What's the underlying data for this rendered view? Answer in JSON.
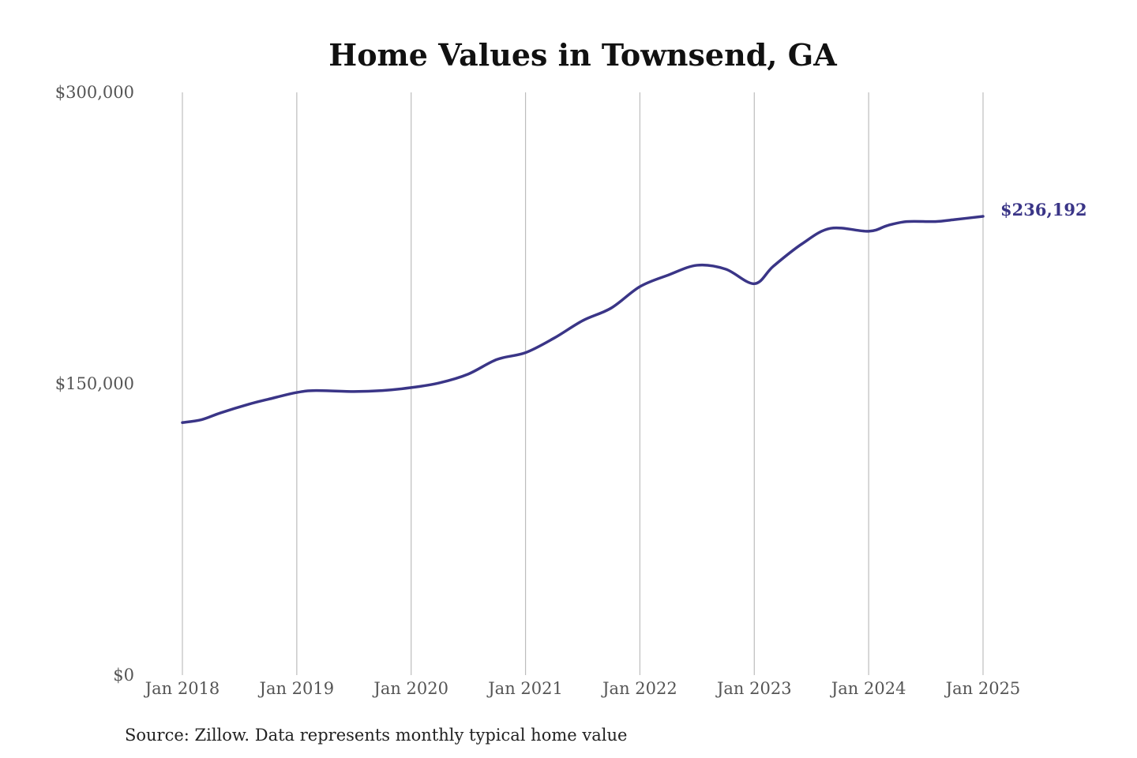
{
  "chart_data": {
    "type": "line",
    "title": "Home Values in Townsend, GA",
    "xlabel": "",
    "ylabel": "",
    "ylim": [
      0,
      300000
    ],
    "yticks": [
      {
        "value": 0,
        "label": "$0"
      },
      {
        "value": 150000,
        "label": "$150,000"
      },
      {
        "value": 300000,
        "label": "$300,000"
      }
    ],
    "xticks": [
      {
        "value": 2018,
        "label": "Jan 2018"
      },
      {
        "value": 2019,
        "label": "Jan 2019"
      },
      {
        "value": 2020,
        "label": "Jan 2020"
      },
      {
        "value": 2021,
        "label": "Jan 2021"
      },
      {
        "value": 2022,
        "label": "Jan 2022"
      },
      {
        "value": 2023,
        "label": "Jan 2023"
      },
      {
        "value": 2024,
        "label": "Jan 2024"
      },
      {
        "value": 2025,
        "label": "Jan 2025"
      }
    ],
    "grid": "vertical",
    "series": [
      {
        "color": "#3a3587",
        "x": [
          "Jan 2018",
          "Mar 2018",
          "May 2018",
          "Aug 2018",
          "Oct 2018",
          "Jan 2019",
          "Mar 2019",
          "Jul 2019",
          "Oct 2019",
          "Jan 2020",
          "Apr 2020",
          "Jul 2020",
          "Oct 2020",
          "Jan 2021",
          "Apr 2021",
          "Jul 2021",
          "Oct 2021",
          "Jan 2022",
          "Apr 2022",
          "Jul 2022",
          "Oct 2022",
          "Jan 2023",
          "Mar 2023",
          "Jun 2023",
          "Sep 2023",
          "Jan 2024",
          "Mar 2024",
          "May 2024",
          "Aug 2024",
          "Oct 2024",
          "Jan 2025"
        ],
        "values": [
          130000,
          131500,
          135000,
          139500,
          142000,
          145500,
          146500,
          146000,
          146500,
          148000,
          150500,
          155000,
          162500,
          166000,
          173500,
          182500,
          189000,
          200000,
          206000,
          211000,
          209000,
          201500,
          210500,
          222000,
          230000,
          228500,
          231500,
          233500,
          233500,
          234500,
          236192
        ]
      }
    ],
    "end_label": "$236,192",
    "source": "Source: Zillow. Data represents monthly typical home value"
  }
}
